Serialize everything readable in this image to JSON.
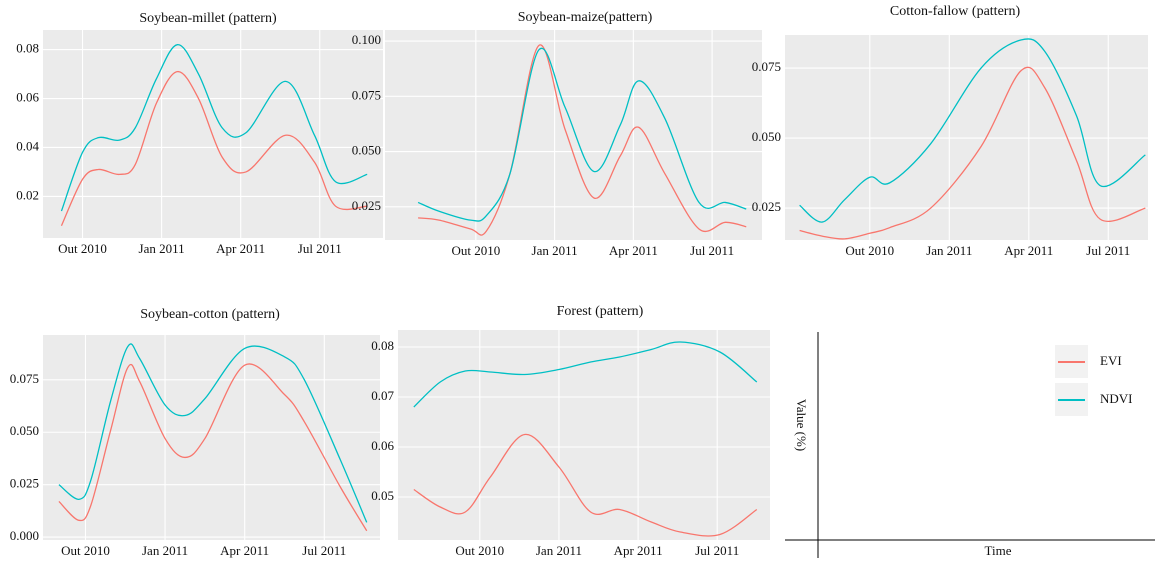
{
  "chart_data": [
    {
      "type": "line",
      "title": "Soybean-millet (pattern)",
      "x": [
        -0.8,
        0,
        0.6,
        1.4,
        2,
        2.8,
        3.6,
        4.4,
        5.3,
        6.2,
        7.7,
        8.8,
        9.6,
        10.8
      ],
      "series": [
        {
          "name": "EVI",
          "color": "#f8766d",
          "values": [
            0.008,
            0.027,
            0.031,
            0.029,
            0.033,
            0.058,
            0.071,
            0.06,
            0.036,
            0.03,
            0.045,
            0.034,
            0.016,
            0.016
          ]
        },
        {
          "name": "NDVI",
          "color": "#00bfc4",
          "values": [
            0.014,
            0.038,
            0.044,
            0.043,
            0.048,
            0.068,
            0.082,
            0.07,
            0.048,
            0.046,
            0.067,
            0.045,
            0.026,
            0.029
          ]
        }
      ],
      "xlim": [
        -1.5,
        11.4
      ],
      "xticks": [
        {
          "value": 0,
          "label": "Out 2010"
        },
        {
          "value": 3,
          "label": "Jan 2011"
        },
        {
          "value": 6,
          "label": "Apr 2011"
        },
        {
          "value": 9,
          "label": "Jul 2011"
        }
      ],
      "ylim": [
        0.003,
        0.088
      ],
      "yticks": [
        0.02,
        0.04,
        0.06,
        0.08
      ],
      "grid": true
    },
    {
      "type": "line",
      "title": "Soybean-maize(pattern)",
      "x": [
        -2.2,
        -1.4,
        -0.2,
        0.4,
        1.3,
        2.4,
        3.4,
        4.5,
        5.5,
        6.2,
        7.2,
        8.5,
        9.5,
        10.3
      ],
      "series": [
        {
          "name": "EVI",
          "color": "#f8766d",
          "values": [
            0.02,
            0.019,
            0.015,
            0.014,
            0.04,
            0.098,
            0.06,
            0.029,
            0.048,
            0.061,
            0.04,
            0.015,
            0.018,
            0.016
          ]
        },
        {
          "name": "NDVI",
          "color": "#00bfc4",
          "values": [
            0.027,
            0.023,
            0.019,
            0.021,
            0.04,
            0.096,
            0.07,
            0.041,
            0.062,
            0.082,
            0.065,
            0.027,
            0.027,
            0.024
          ]
        }
      ],
      "xlim": [
        -3.46,
        10.9
      ],
      "xticks": [
        {
          "value": 0,
          "label": "Out 2010"
        },
        {
          "value": 3,
          "label": "Jan 2011"
        },
        {
          "value": 6,
          "label": "Apr 2011"
        },
        {
          "value": 9,
          "label": "Jul 2011"
        }
      ],
      "ylim": [
        0.01,
        0.105
      ],
      "yticks": [
        {
          "value": 0.1,
          "label": "0.100"
        },
        0.075,
        {
          "value": 0.05,
          "label": "0.050"
        },
        0.025
      ],
      "grid": true
    },
    {
      "type": "line",
      "title": "Cotton-fallow (pattern)",
      "x": [
        -2.65,
        -1.8,
        -0.95,
        0,
        0.75,
        2.3,
        4.2,
        5.7,
        6.6,
        7.8,
        8.7,
        10.4
      ],
      "series": [
        {
          "name": "EVI",
          "color": "#f8766d",
          "values": [
            0.017,
            0.015,
            0.014,
            0.016,
            0.018,
            0.025,
            0.047,
            0.074,
            0.068,
            0.042,
            0.021,
            0.025
          ]
        },
        {
          "name": "NDVI",
          "color": "#00bfc4",
          "values": [
            0.026,
            0.02,
            0.028,
            0.036,
            0.034,
            0.048,
            0.075,
            0.085,
            0.081,
            0.058,
            0.033,
            0.044
          ]
        }
      ],
      "xlim": [
        -3.2,
        10.5
      ],
      "xticks": [
        {
          "value": 0,
          "label": "Out 2010"
        },
        {
          "value": 3,
          "label": "Jan 2011"
        },
        {
          "value": 6,
          "label": "Apr 2011"
        },
        {
          "value": 9,
          "label": "Jul 2011"
        }
      ],
      "ylim": [
        0.0136,
        0.0868
      ],
      "yticks": [
        0.025,
        {
          "value": 0.05,
          "label": "0.050"
        },
        0.075
      ],
      "grid": true
    },
    {
      "type": "line",
      "title": "Soybean-cotton (pattern)",
      "x": [
        -1.0,
        -0.25,
        0.2,
        0.95,
        1.6,
        2.05,
        3.0,
        3.75,
        4.5,
        6.0,
        7.5,
        8.25,
        9.6,
        10.6
      ],
      "series": [
        {
          "name": "EVI",
          "color": "#f8766d",
          "values": [
            0.017,
            0.008,
            0.015,
            0.051,
            0.081,
            0.074,
            0.047,
            0.038,
            0.047,
            0.082,
            0.068,
            0.055,
            0.024,
            0.003
          ]
        },
        {
          "name": "NDVI",
          "color": "#00bfc4",
          "values": [
            0.025,
            0.018,
            0.027,
            0.065,
            0.091,
            0.085,
            0.063,
            0.058,
            0.066,
            0.09,
            0.086,
            0.075,
            0.037,
            0.007
          ]
        }
      ],
      "xlim": [
        -1.6,
        11.1
      ],
      "xticks": [
        {
          "value": 0,
          "label": "Out 2010"
        },
        {
          "value": 3,
          "label": "Jan 2011"
        },
        {
          "value": 6,
          "label": "Apr 2011"
        },
        {
          "value": 9,
          "label": "Jul 2011"
        }
      ],
      "ylim": [
        -0.0014,
        0.0964
      ],
      "yticks": [
        {
          "value": 0,
          "label": "0.000"
        },
        0.025,
        {
          "value": 0.05,
          "label": "0.050"
        },
        0.075
      ],
      "grid": true
    },
    {
      "type": "line",
      "title": "Forest (pattern)",
      "x": [
        -2.5,
        -1.5,
        -0.55,
        0.4,
        1.7,
        3.0,
        4.2,
        5.3,
        6.5,
        7.6,
        9.1,
        10.5
      ],
      "series": [
        {
          "name": "EVI",
          "color": "#f8766d",
          "values": [
            0.0515,
            0.048,
            0.047,
            0.054,
            0.0625,
            0.056,
            0.047,
            0.0475,
            0.045,
            0.043,
            0.0425,
            0.0475
          ]
        },
        {
          "name": "NDVI",
          "color": "#00bfc4",
          "values": [
            0.068,
            0.073,
            0.0752,
            0.075,
            0.0745,
            0.0755,
            0.077,
            0.078,
            0.0795,
            0.081,
            0.079,
            0.073
          ]
        }
      ],
      "xlim": [
        -3.1,
        11.0
      ],
      "xticks": [
        {
          "value": 0,
          "label": "Out 2010"
        },
        {
          "value": 3,
          "label": "Jan 2011"
        },
        {
          "value": 6,
          "label": "Apr 2011"
        },
        {
          "value": 9,
          "label": "Jul 2011"
        }
      ],
      "ylim": [
        0.0414,
        0.0834
      ],
      "yticks": [
        0.05,
        0.06,
        0.07,
        0.08
      ],
      "grid": true
    }
  ],
  "axis_labels": {
    "y": "Value (%)",
    "x": "Time"
  }
}
